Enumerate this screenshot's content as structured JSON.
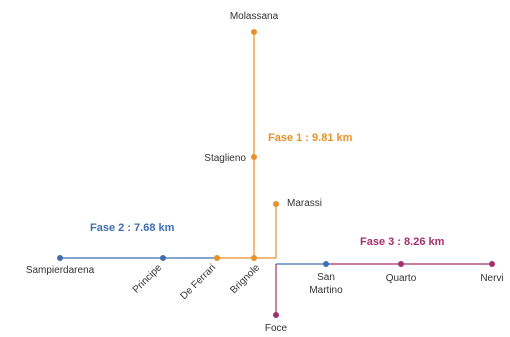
{
  "colors": {
    "phase1": "#e8902a",
    "phase2": "#3f6fae",
    "phase3": "#a5306e",
    "text": "#333333"
  },
  "phases": {
    "phase1": "Fase 1 : 9.81 km",
    "phase2": "Fase 2 : 7.68 km",
    "phase3": "Fase 3 : 8.26 km"
  },
  "stations": {
    "molassana": "Molassana",
    "staglieno": "Staglieno",
    "marassi": "Marassi",
    "sampierdarena": "Sampierdarena",
    "principe": "Principe",
    "de_ferrari": "De Ferrari",
    "brignole": "Brignole",
    "san_martino_1": "San",
    "san_martino_2": "Martino",
    "quarto": "Quarto",
    "nervi": "Nervi",
    "foce": "Foce"
  }
}
